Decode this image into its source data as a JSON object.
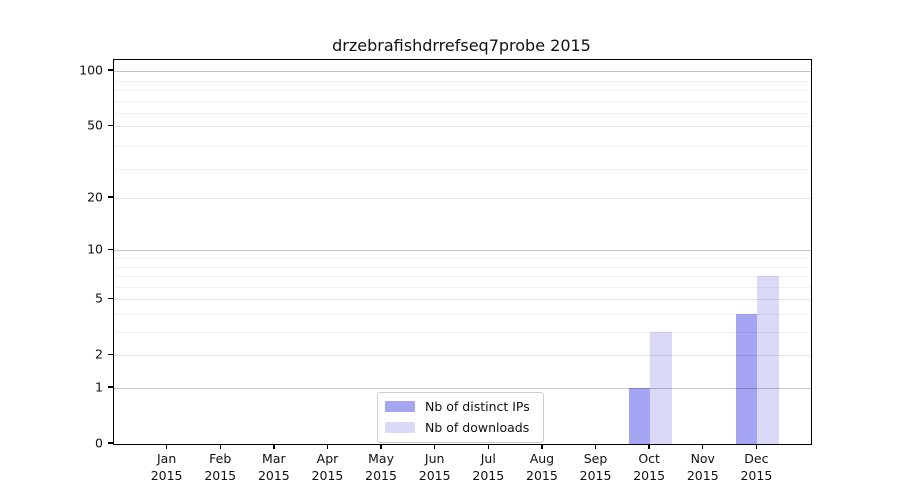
{
  "chart_data": {
    "type": "bar",
    "title": "drzebrafishdrrefseq7probe 2015",
    "categories": [
      "Jan",
      "Feb",
      "Mar",
      "Apr",
      "May",
      "Jun",
      "Jul",
      "Aug",
      "Sep",
      "Oct",
      "Nov",
      "Dec"
    ],
    "year_label": "2015",
    "series": [
      {
        "name": "Nb of distinct IPs",
        "color": "#a5a5f3",
        "values": [
          0,
          0,
          0,
          0,
          0,
          0,
          0,
          0,
          0,
          1,
          0,
          4
        ]
      },
      {
        "name": "Nb of downloads",
        "color": "#dadaf8",
        "values": [
          0,
          0,
          0,
          0,
          0,
          0,
          0,
          0,
          0,
          3,
          0,
          7
        ]
      }
    ],
    "y_ticks": [
      0,
      1,
      2,
      5,
      10,
      20,
      50,
      100
    ],
    "y_scale": "log1p",
    "ylim": [
      0,
      115
    ],
    "grid": true,
    "legend_position": "bottom-center",
    "spine_color": "#000000",
    "background_color": "#ffffff"
  }
}
